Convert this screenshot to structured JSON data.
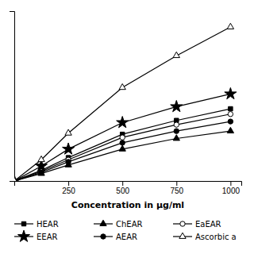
{
  "chart_data": {
    "type": "line",
    "xlabel": "Concentration in μg/ml",
    "x": [
      0,
      125,
      250,
      500,
      750,
      1000
    ],
    "series": [
      {
        "name": "HEAR",
        "color": "black",
        "marker": "square",
        "values": [
          0,
          10,
          22,
          44,
          57,
          68
        ]
      },
      {
        "name": "ChEAR",
        "color": "black",
        "marker": "triangle",
        "values": [
          0,
          7,
          15,
          30,
          40,
          47
        ]
      },
      {
        "name": "EaEAR",
        "color": "black",
        "marker": "circle-open",
        "values": [
          0,
          9,
          20,
          41,
          53,
          63
        ]
      },
      {
        "name": "EEAR",
        "color": "black",
        "marker": "star",
        "values": [
          0,
          14,
          30,
          55,
          70,
          82
        ]
      },
      {
        "name": "AEAR",
        "color": "black",
        "marker": "circle",
        "values": [
          0,
          8,
          18,
          36,
          47,
          56
        ]
      },
      {
        "name": "Ascorbic a",
        "color": "black",
        "marker": "triangle-open",
        "values": [
          0,
          20,
          45,
          88,
          118,
          145
        ]
      }
    ],
    "xlim": [
      0,
      1050
    ],
    "ylim": [
      0,
      160
    ],
    "xticks": [
      250,
      500,
      750,
      1000
    ],
    "tick_labels": "x",
    "legend": "bottom"
  }
}
